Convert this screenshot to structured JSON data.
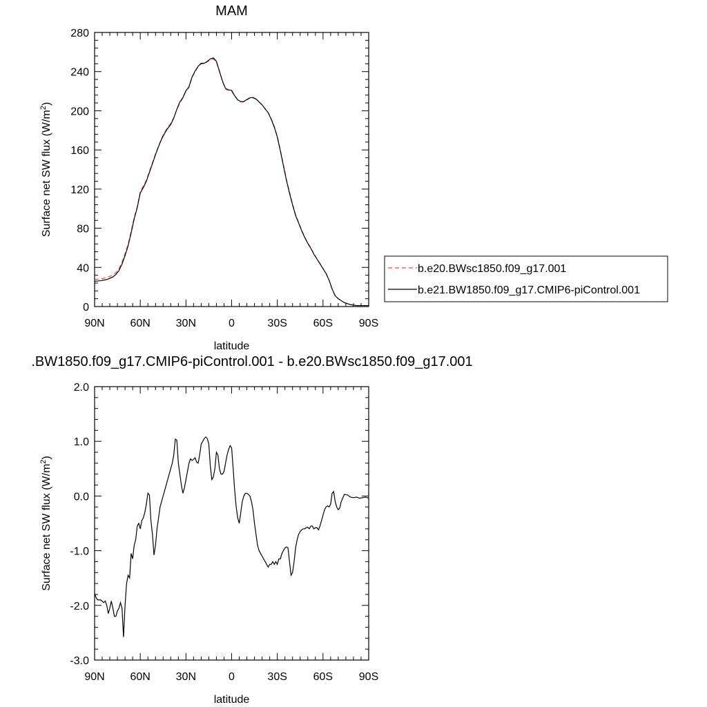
{
  "chart_data": [
    {
      "type": "line",
      "title": "MAM",
      "xlabel": "latitude",
      "ylabel": "Surface net SW flux (W/m",
      "ylabel_sup": "2",
      "ylabel_tail": ")",
      "xlim": [
        90,
        -90
      ],
      "ylim": [
        0,
        280
      ],
      "x_ticks": [
        {
          "value": 90,
          "label": "90N"
        },
        {
          "value": 60,
          "label": "60N"
        },
        {
          "value": 30,
          "label": "30N"
        },
        {
          "value": 0,
          "label": "0"
        },
        {
          "value": -30,
          "label": "30S"
        },
        {
          "value": -60,
          "label": "60S"
        },
        {
          "value": -90,
          "label": "90S"
        }
      ],
      "y_ticks": [
        {
          "value": 0,
          "label": "0"
        },
        {
          "value": 40,
          "label": "40"
        },
        {
          "value": 80,
          "label": "80"
        },
        {
          "value": 120,
          "label": "120"
        },
        {
          "value": 160,
          "label": "160"
        },
        {
          "value": 200,
          "label": "200"
        },
        {
          "value": 240,
          "label": "240"
        },
        {
          "value": 280,
          "label": "280"
        }
      ],
      "legend_position": "right",
      "series": [
        {
          "name": "b.e20.BWsc1850.f09_g17.001",
          "color": "#ff0000",
          "dash": true,
          "x": [
            90,
            86,
            82,
            78,
            76,
            74,
            72,
            70,
            68,
            66,
            64,
            62,
            60,
            58,
            56,
            54,
            52,
            50,
            48,
            46,
            44,
            42,
            40,
            38,
            36,
            34,
            32,
            30,
            28,
            26,
            24,
            22,
            20,
            18,
            16,
            14,
            12,
            10,
            8,
            6,
            4,
            2,
            0,
            -2,
            -4,
            -6,
            -8,
            -10,
            -12,
            -14,
            -16,
            -18,
            -20,
            -22,
            -24,
            -26,
            -28,
            -30,
            -32,
            -34,
            -36,
            -38,
            -40,
            -42,
            -44,
            -46,
            -48,
            -50,
            -52,
            -54,
            -56,
            -58,
            -60,
            -62,
            -64,
            -66,
            -68,
            -70,
            -72,
            -74,
            -76,
            -78,
            -80,
            -82,
            -84,
            -86,
            -88,
            -90
          ],
          "y": [
            27.6,
            28.3,
            29.6,
            32.1,
            34.5,
            38.7,
            45.4,
            54.1,
            63.4,
            76.8,
            91.0,
            102.0,
            117.5,
            123.0,
            129.0,
            138.0,
            147.0,
            156.0,
            164.0,
            172.0,
            178.0,
            183.0,
            187.0,
            193.0,
            201.0,
            208.0,
            213.0,
            220.0,
            224.0,
            234.0,
            240.0,
            245.0,
            248.0,
            248.0,
            250.0,
            252.0,
            253.0,
            250.0,
            240.0,
            230.0,
            222.0,
            221.0,
            220.0,
            215.0,
            211.0,
            209.0,
            209.0,
            211.0,
            213.0,
            213.0,
            212.0,
            209.0,
            206.0,
            202.0,
            198.0,
            192.0,
            184.0,
            174.0,
            160.0,
            145.0,
            130.0,
            117.0,
            105.0,
            94.0,
            86.0,
            78.0,
            71.0,
            65.0,
            60.0,
            54.0,
            49.0,
            44.0,
            39.0,
            34.0,
            27.0,
            18.0,
            11.0,
            8.0,
            6.0,
            4.0,
            3.0,
            2.0,
            1.5,
            1.0,
            1.0,
            1.0,
            1.0,
            1.0
          ]
        },
        {
          "name": "b.e21.BW1850.f09_g17.CMIP6-piControl.001",
          "color": "#000000",
          "dash": false,
          "x": [
            90,
            86,
            82,
            78,
            76,
            74,
            72,
            70,
            68,
            66,
            64,
            62,
            60,
            58,
            56,
            54,
            52,
            50,
            48,
            46,
            44,
            42,
            40,
            38,
            36,
            34,
            32,
            30,
            28,
            26,
            24,
            22,
            20,
            18,
            16,
            14,
            12,
            10,
            8,
            6,
            4,
            2,
            0,
            -2,
            -4,
            -6,
            -8,
            -10,
            -12,
            -14,
            -16,
            -18,
            -20,
            -22,
            -24,
            -26,
            -28,
            -30,
            -32,
            -34,
            -36,
            -38,
            -40,
            -42,
            -44,
            -46,
            -48,
            -50,
            -52,
            -54,
            -56,
            -58,
            -60,
            -62,
            -64,
            -66,
            -68,
            -70,
            -72,
            -74,
            -76,
            -78,
            -80,
            -82,
            -84,
            -86,
            -88,
            -90
          ],
          "y": [
            25.8,
            26.4,
            27.6,
            30.2,
            32.8,
            36.8,
            43.3,
            52.1,
            62.0,
            75.2,
            89.5,
            101.0,
            116.0,
            121.5,
            128.0,
            137.0,
            146.0,
            155.0,
            163.5,
            171.0,
            177.0,
            182.0,
            186.0,
            192.5,
            201.5,
            209.0,
            213.5,
            220.5,
            224.5,
            234.5,
            240.5,
            245.5,
            248.5,
            248.5,
            250.5,
            253.0,
            254.0,
            250.5,
            240.3,
            230.3,
            222.8,
            221.3,
            220.8,
            215.3,
            211.2,
            209.3,
            209.5,
            211.5,
            213.3,
            213.5,
            212.0,
            209.1,
            206.0,
            202.0,
            198.0,
            191.4,
            183.2,
            173.0,
            159.0,
            143.8,
            128.8,
            115.8,
            103.9,
            93.0,
            85.3,
            77.4,
            70.5,
            64.6,
            59.5,
            53.5,
            48.5,
            43.7,
            38.7,
            33.8,
            26.9,
            17.9,
            11.0,
            8.0,
            6.0,
            4.0,
            3.0,
            2.0,
            1.5,
            1.0,
            1.0,
            1.0,
            1.0,
            1.0
          ]
        }
      ]
    },
    {
      "type": "line",
      "title": ".BW1850.f09_g17.CMIP6-piControl.001 - b.e20.BWsc1850.f09_g17.001",
      "xlabel": "latitude",
      "ylabel": "Surface net SW flux (W/m",
      "ylabel_sup": "2",
      "ylabel_tail": ")",
      "xlim": [
        90,
        -90
      ],
      "ylim": [
        -3.0,
        2.0
      ],
      "x_ticks": [
        {
          "value": 90,
          "label": "90N"
        },
        {
          "value": 60,
          "label": "60N"
        },
        {
          "value": 30,
          "label": "30N"
        },
        {
          "value": 0,
          "label": "0"
        },
        {
          "value": -30,
          "label": "30S"
        },
        {
          "value": -60,
          "label": "60S"
        },
        {
          "value": -90,
          "label": "90S"
        }
      ],
      "y_ticks": [
        {
          "value": -3.0,
          "label": "-3.0"
        },
        {
          "value": -2.0,
          "label": "-2.0"
        },
        {
          "value": -1.0,
          "label": "-1.0"
        },
        {
          "value": 0.0,
          "label": "0.0"
        },
        {
          "value": 1.0,
          "label": "1.0"
        },
        {
          "value": 2.0,
          "label": "2.0"
        }
      ],
      "series": [
        {
          "color": "#000000",
          "dash": false,
          "x": [
            90,
            89,
            88,
            86,
            84,
            83,
            82,
            81,
            80,
            79,
            78,
            77,
            76,
            75,
            74,
            73,
            72,
            71,
            70,
            69,
            68,
            67,
            66,
            65,
            64,
            63,
            62,
            61,
            60,
            59,
            58,
            57,
            56,
            55,
            54,
            53,
            52,
            51,
            50,
            49,
            48,
            47,
            46,
            45,
            44,
            43,
            42,
            41,
            40,
            39,
            38,
            37,
            36,
            35,
            34,
            33,
            32,
            31,
            30,
            29,
            28,
            27,
            26,
            25,
            24,
            23,
            22,
            21,
            20,
            19,
            18,
            17,
            16,
            15,
            14,
            13,
            12,
            11,
            10,
            9,
            8,
            7,
            6,
            5,
            4,
            3,
            2,
            1,
            0,
            -1,
            -2,
            -3,
            -4,
            -5,
            -6,
            -7,
            -8,
            -9,
            -10,
            -11,
            -12,
            -13,
            -14,
            -15,
            -16,
            -17,
            -18,
            -19,
            -20,
            -21,
            -22,
            -23,
            -24,
            -25,
            -26,
            -27,
            -28,
            -29,
            -30,
            -31,
            -32,
            -33,
            -34,
            -35,
            -36,
            -37,
            -38,
            -39,
            -40,
            -41,
            -42,
            -43,
            -44,
            -45,
            -46,
            -47,
            -48,
            -49,
            -50,
            -51,
            -52,
            -53,
            -54,
            -55,
            -56,
            -57,
            -58,
            -59,
            -60,
            -61,
            -62,
            -63,
            -64,
            -65,
            -66,
            -67,
            -68,
            -69,
            -70,
            -71,
            -72,
            -74,
            -76,
            -78,
            -80,
            -82,
            -84,
            -86,
            -88,
            -90
          ],
          "y": [
            -1.78,
            -1.86,
            -1.9,
            -1.9,
            -1.95,
            -1.92,
            -2.0,
            -2.15,
            -2.05,
            -1.92,
            -2.05,
            -2.2,
            -2.2,
            -2.1,
            -2.05,
            -1.95,
            -2.05,
            -2.58,
            -2.0,
            -1.6,
            -1.45,
            -1.5,
            -1.05,
            -1.15,
            -0.9,
            -0.8,
            -0.55,
            -0.5,
            -0.6,
            -0.45,
            -0.4,
            -0.3,
            -0.15,
            0.05,
            0.02,
            -0.45,
            -0.7,
            -1.08,
            -0.9,
            -0.6,
            -0.4,
            -0.2,
            -0.1,
            0.0,
            0.1,
            0.2,
            0.3,
            0.4,
            0.5,
            0.6,
            0.75,
            1.04,
            1.02,
            0.6,
            0.4,
            0.2,
            0.05,
            0.15,
            0.3,
            0.45,
            0.6,
            0.68,
            0.65,
            0.67,
            0.7,
            0.62,
            0.6,
            0.75,
            0.95,
            1.0,
            1.05,
            1.08,
            1.05,
            0.95,
            0.55,
            0.3,
            0.35,
            0.5,
            0.8,
            0.75,
            0.5,
            0.4,
            0.4,
            0.45,
            0.6,
            0.75,
            0.85,
            0.92,
            0.88,
            0.5,
            0.1,
            -0.2,
            -0.4,
            -0.5,
            -0.3,
            -0.1,
            0.0,
            0.05,
            0.05,
            0.03,
            0.0,
            -0.1,
            -0.25,
            -0.5,
            -0.7,
            -0.9,
            -1.0,
            -1.05,
            -1.1,
            -1.15,
            -1.2,
            -1.25,
            -1.3,
            -1.25,
            -1.25,
            -1.2,
            -1.25,
            -1.2,
            -1.25,
            -1.15,
            -1.15,
            -1.05,
            -1.0,
            -0.95,
            -0.93,
            -0.95,
            -1.2,
            -1.45,
            -1.4,
            -1.2,
            -0.95,
            -0.8,
            -0.7,
            -0.65,
            -0.62,
            -0.6,
            -0.6,
            -0.58,
            -0.57,
            -0.6,
            -0.55,
            -0.55,
            -0.6,
            -0.58,
            -0.58,
            -0.62,
            -0.55,
            -0.45,
            -0.35,
            -0.25,
            -0.2,
            -0.18,
            -0.2,
            -0.15,
            0.05,
            0.08,
            -0.1,
            -0.2,
            -0.25,
            -0.22,
            -0.1,
            0.03,
            0.02,
            -0.02,
            -0.03,
            -0.02,
            -0.04,
            -0.03,
            -0.02,
            -0.04
          ]
        }
      ]
    }
  ]
}
